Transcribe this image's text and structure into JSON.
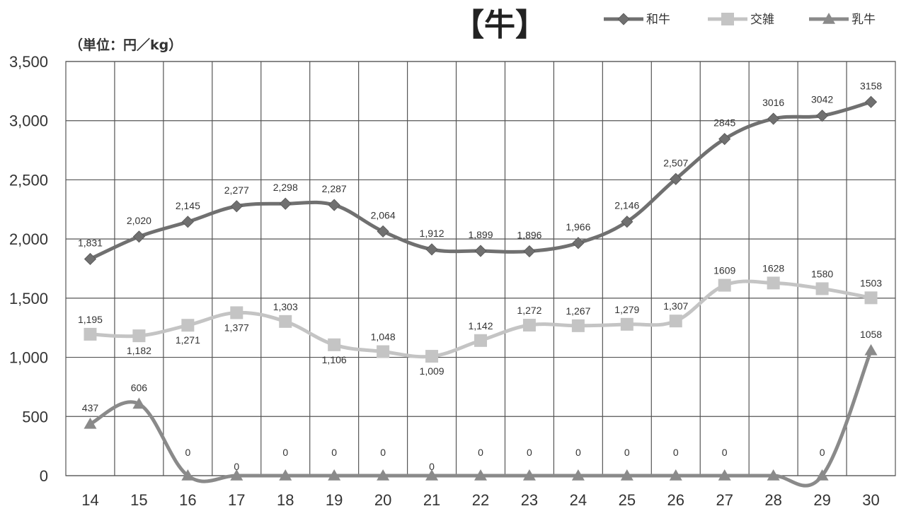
{
  "chart_data": {
    "type": "line",
    "title": "【牛】",
    "unit_label": "（単位：円／kg）",
    "ylim": [
      0,
      3500
    ],
    "yticks": [
      "0",
      "500",
      "1,000",
      "1,500",
      "2,000",
      "2,500",
      "3,000",
      "3,500"
    ],
    "yticks_values": [
      0,
      500,
      1000,
      1500,
      2000,
      2500,
      3000,
      3500
    ],
    "categories": [
      "14",
      "15",
      "16",
      "17",
      "18",
      "19",
      "20",
      "21",
      "22",
      "23",
      "24",
      "25",
      "26",
      "27",
      "28",
      "29",
      "30"
    ],
    "grid": true,
    "legend_position": "top-right",
    "series": [
      {
        "name": "和牛",
        "marker": "diamond",
        "color": "#707070",
        "values": [
          1831,
          2020,
          2145,
          2277,
          2298,
          2287,
          2064,
          1912,
          1899,
          1896,
          1966,
          2146,
          2507,
          2845,
          3016,
          3042,
          3158
        ],
        "labels": [
          "1,831",
          "2,020",
          "2,145",
          "2,277",
          "2,298",
          "2,287",
          "2,064",
          "1,912",
          "1,899",
          "1,896",
          "1,966",
          "2,146",
          "2,507",
          "2845",
          "3016",
          "3042",
          "3158"
        ]
      },
      {
        "name": "交雑",
        "marker": "square",
        "color": "#c4c4c4",
        "values": [
          1195,
          1182,
          1271,
          1377,
          1303,
          1106,
          1048,
          1009,
          1142,
          1272,
          1267,
          1279,
          1307,
          1609,
          1628,
          1580,
          1503
        ],
        "labels": [
          "1,195",
          "1,182",
          "1,271",
          "1,377",
          "1,303",
          "1,106",
          "1,048",
          "1,009",
          "1,142",
          "1,272",
          "1,267",
          "1,279",
          "1,307",
          "1609",
          "1628",
          "1580",
          "1503"
        ]
      },
      {
        "name": "乳牛",
        "marker": "triangle",
        "color": "#8a8a8a",
        "values": [
          437,
          606,
          0,
          0,
          0,
          0,
          0,
          0,
          0,
          0,
          0,
          0,
          0,
          0,
          0,
          0,
          1058
        ],
        "labels": [
          "437",
          "606",
          "0",
          "0",
          "0",
          "0",
          "0",
          "0",
          "0",
          "0",
          "0",
          "0",
          "0",
          "0",
          "",
          "0",
          "1058"
        ]
      }
    ]
  }
}
